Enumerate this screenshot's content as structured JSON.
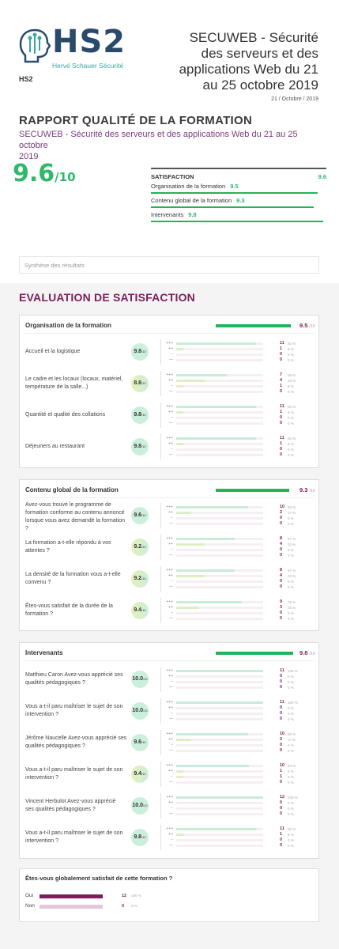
{
  "header": {
    "logo_main": "HS2",
    "logo_sub": "Hervé Schauer Sécurité",
    "org": "HS2",
    "course_title_lines": [
      "SECUWEB - Sécurité",
      "des serveurs et des",
      "applications Web du 21",
      "au 25 octobre 2019"
    ],
    "date": "21 / Octobre / 2019"
  },
  "report": {
    "title": "RAPPORT QUALITÉ DE LA FORMATION",
    "subtitle_line1": "SECUWEB - Sécurité des serveurs et des applications Web du 21 au 25 octobre",
    "subtitle_line2": "2019",
    "score": "9.6",
    "score_den": "/10"
  },
  "satisfaction": {
    "label": "SATISFACTION",
    "value": "9.6",
    "rows": [
      {
        "label": "Organisation de la formation",
        "value": "9.5",
        "fraction": 0.95
      },
      {
        "label": "Contenu global de la formation",
        "value": "9.3",
        "fraction": 0.93
      },
      {
        "label": "Intervenants",
        "value": "9.8",
        "fraction": 0.98
      }
    ]
  },
  "synthese_placeholder": "Synthèse des résultats",
  "evaluation_title": "EVALUATION DE SATISFACTION",
  "score_den": "/10",
  "dist_labels": [
    "+++",
    "++",
    "−",
    "—"
  ],
  "sections": [
    {
      "title": "Organisation de la formation",
      "score": "9.5",
      "fraction": 0.95,
      "questions": [
        {
          "lines": [
            "Accueil et la logistique"
          ],
          "score": "9.8",
          "dist": [
            {
              "c": "11",
              "p": "92 %",
              "f": 0.92
            },
            {
              "c": "1",
              "p": "8 %",
              "f": 0.08
            },
            {
              "c": "0",
              "p": "0 %",
              "f": 0
            },
            {
              "c": "0",
              "p": "0 %",
              "f": 0
            }
          ]
        },
        {
          "lines": [
            "Le cadre et les locaux (locaux, matériel,",
            "température de la salle...)"
          ],
          "score": "8.8",
          "lo": true,
          "dist": [
            {
              "c": "7",
              "p": "58 %",
              "f": 0.58
            },
            {
              "c": "4",
              "p": "33 %",
              "f": 0.33
            },
            {
              "c": "1",
              "p": "8 %",
              "f": 0.08
            },
            {
              "c": "0",
              "p": "0 %",
              "f": 0
            }
          ]
        },
        {
          "lines": [
            "Quantité et qualité des collations"
          ],
          "score": "9.8",
          "dist": [
            {
              "c": "11",
              "p": "92 %",
              "f": 0.92
            },
            {
              "c": "1",
              "p": "8 %",
              "f": 0.08
            },
            {
              "c": "0",
              "p": "0 %",
              "f": 0
            },
            {
              "c": "0",
              "p": "0 %",
              "f": 0
            }
          ]
        },
        {
          "lines": [
            "Déjeuners au restaurant"
          ],
          "score": "9.8",
          "dist": [
            {
              "c": "11",
              "p": "92 %",
              "f": 0.92
            },
            {
              "c": "1",
              "p": "8 %",
              "f": 0.08
            },
            {
              "c": "0",
              "p": "0 %",
              "f": 0
            },
            {
              "c": "0",
              "p": "0 %",
              "f": 0
            }
          ]
        }
      ]
    },
    {
      "title": "Contenu global de la formation",
      "score": "9.3",
      "fraction": 0.93,
      "questions": [
        {
          "lines": [
            "Avez-vous trouvé le programme de",
            "formation conforme au contenu annoncé",
            "lorsque vous avez demandé la formation",
            "?"
          ],
          "score": "9.6",
          "dist": [
            {
              "c": "10",
              "p": "83 %",
              "f": 0.83
            },
            {
              "c": "2",
              "p": "17 %",
              "f": 0.17
            },
            {
              "c": "0",
              "p": "0 %",
              "f": 0
            },
            {
              "c": "0",
              "p": "0 %",
              "f": 0
            }
          ]
        },
        {
          "lines": [
            "La formation a-t-elle répondu à vos",
            "attentes ?"
          ],
          "score": "9.2",
          "lo": true,
          "dist": [
            {
              "c": "8",
              "p": "67 %",
              "f": 0.67
            },
            {
              "c": "4",
              "p": "33 %",
              "f": 0.33
            },
            {
              "c": "0",
              "p": "0 %",
              "f": 0
            },
            {
              "c": "0",
              "p": "0 %",
              "f": 0
            }
          ]
        },
        {
          "lines": [
            "La densité de la formation vous a-t-elle",
            "convenu ?"
          ],
          "score": "9.2",
          "lo": true,
          "dist": [
            {
              "c": "8",
              "p": "67 %",
              "f": 0.67
            },
            {
              "c": "4",
              "p": "33 %",
              "f": 0.33
            },
            {
              "c": "0",
              "p": "0 %",
              "f": 0
            },
            {
              "c": "0",
              "p": "0 %",
              "f": 0
            }
          ]
        },
        {
          "lines": [
            "Êtes-vous satisfait de la durée de la",
            "formation ?"
          ],
          "score": "9.4",
          "lo": true,
          "dist": [
            {
              "c": "9",
              "p": "75 %",
              "f": 0.75
            },
            {
              "c": "3",
              "p": "25 %",
              "f": 0.25
            },
            {
              "c": "0",
              "p": "0 %",
              "f": 0
            },
            {
              "c": "0",
              "p": "0 %",
              "f": 0
            }
          ]
        }
      ]
    },
    {
      "title": "Intervenants",
      "score": "9.8",
      "fraction": 0.98,
      "questions": [
        {
          "lines": [
            "Matthieu Caron Avez-vous apprécié ses",
            "qualités pédagogiques ?"
          ],
          "score": "10.0",
          "dist": [
            {
              "c": "11",
              "p": "100 %",
              "f": 1
            },
            {
              "c": "0",
              "p": "0 %",
              "f": 0
            },
            {
              "c": "0",
              "p": "0 %",
              "f": 0
            },
            {
              "c": "0",
              "p": "0 %",
              "f": 0
            }
          ]
        },
        {
          "lines": [
            "Vous a-t-il paru maîtriser le sujet de son",
            "intervention ?"
          ],
          "score": "10.0",
          "dist": [
            {
              "c": "11",
              "p": "100 %",
              "f": 1
            },
            {
              "c": "0",
              "p": "0 %",
              "f": 0
            },
            {
              "c": "0",
              "p": "0 %",
              "f": 0
            },
            {
              "c": "0",
              "p": "0 %",
              "f": 0
            }
          ]
        },
        {
          "lines": [
            "Jérôme Naucelle Avez-vous apprécié ses",
            "qualités pédagogiques ?"
          ],
          "score": "9.6",
          "dist": [
            {
              "c": "10",
              "p": "83 %",
              "f": 0.83
            },
            {
              "c": "2",
              "p": "17 %",
              "f": 0.17
            },
            {
              "c": "0",
              "p": "0 %",
              "f": 0
            },
            {
              "c": "0",
              "p": "0 %",
              "f": 0
            }
          ]
        },
        {
          "lines": [
            "Vous a-t-il paru maîtriser le sujet de son",
            "intervention ?"
          ],
          "score": "9.4",
          "lo": true,
          "dist": [
            {
              "c": "10",
              "p": "84 %",
              "f": 0.84
            },
            {
              "c": "1",
              "p": "8 %",
              "f": 0.08
            },
            {
              "c": "1",
              "p": "8 %",
              "f": 0.08
            },
            {
              "c": "0",
              "p": "0 %",
              "f": 0
            }
          ]
        },
        {
          "lines": [
            "Vincent Herbulot Avez-vous apprécié",
            "ses qualités pédagogiques ?"
          ],
          "score": "10.0",
          "dist": [
            {
              "c": "12",
              "p": "100 %",
              "f": 1
            },
            {
              "c": "0",
              "p": "0 %",
              "f": 0
            },
            {
              "c": "0",
              "p": "0 %",
              "f": 0
            },
            {
              "c": "0",
              "p": "0 %",
              "f": 0
            }
          ]
        },
        {
          "lines": [
            "Vous a-t-il paru maîtriser le sujet de son",
            "intervention ?"
          ],
          "score": "9.8",
          "dist": [
            {
              "c": "11",
              "p": "92 %",
              "f": 0.92
            },
            {
              "c": "1",
              "p": "8 %",
              "f": 0.08
            },
            {
              "c": "0",
              "p": "0 %",
              "f": 0
            },
            {
              "c": "0",
              "p": "0 %",
              "f": 0
            }
          ]
        }
      ]
    }
  ],
  "global": {
    "question": "Êtes-vous globalement satisfait de cette formation ?",
    "rows": [
      {
        "label": "Oui",
        "count": "12",
        "pct": "100 %",
        "fraction": 1
      },
      {
        "label": "Non",
        "count": "0",
        "pct": "0 %",
        "fraction": 0
      }
    ]
  },
  "colors": {
    "accent_green": "#22b45c",
    "accent_purple": "#7b1e5b",
    "logo_blue": "#2a4a6b",
    "logo_teal": "#3aa7a0"
  }
}
